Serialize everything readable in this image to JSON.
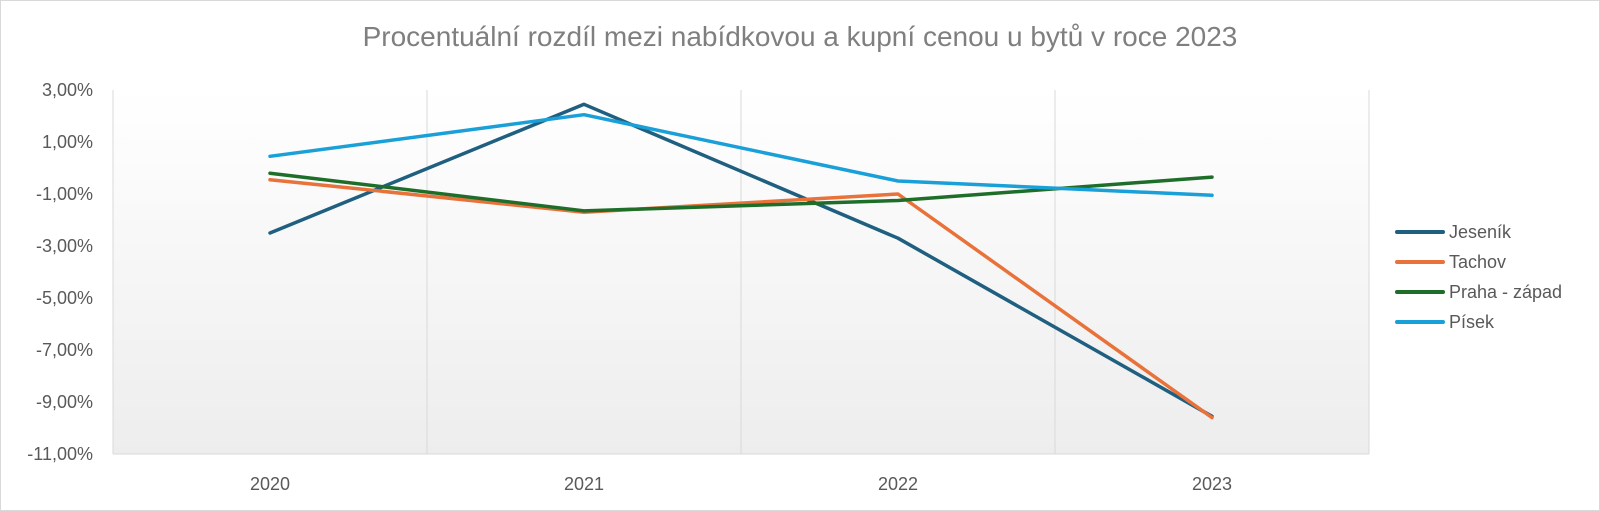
{
  "chart_data": {
    "type": "line",
    "title": "Procentuální rozdíl mezi nabídkovou a kupní cenou u bytů v roce 2023",
    "categories": [
      "2020",
      "2021",
      "2022",
      "2023"
    ],
    "ylim": [
      -11,
      3
    ],
    "yticks": [
      "3,00%",
      "1,00%",
      "-1,00%",
      "-3,00%",
      "-5,00%",
      "-7,00%",
      "-9,00%",
      "-11,00%"
    ],
    "ytick_values": [
      3,
      1,
      -1,
      -3,
      -5,
      -7,
      -9,
      -11
    ],
    "grid": "vertical",
    "legend_position": "right",
    "series": [
      {
        "name": "Jeseník",
        "color": "#1f5f7f",
        "values": [
          -2.5,
          2.45,
          -2.7,
          -9.55
        ]
      },
      {
        "name": "Tachov",
        "color": "#e8723a",
        "values": [
          -0.45,
          -1.7,
          -1.0,
          -9.6
        ]
      },
      {
        "name": "Praha - západ",
        "color": "#1e6e2a",
        "values": [
          -0.2,
          -1.65,
          -1.25,
          -0.35
        ]
      },
      {
        "name": "Písek",
        "color": "#1aa0d8",
        "values": [
          0.45,
          2.05,
          -0.5,
          -1.05
        ]
      }
    ]
  }
}
